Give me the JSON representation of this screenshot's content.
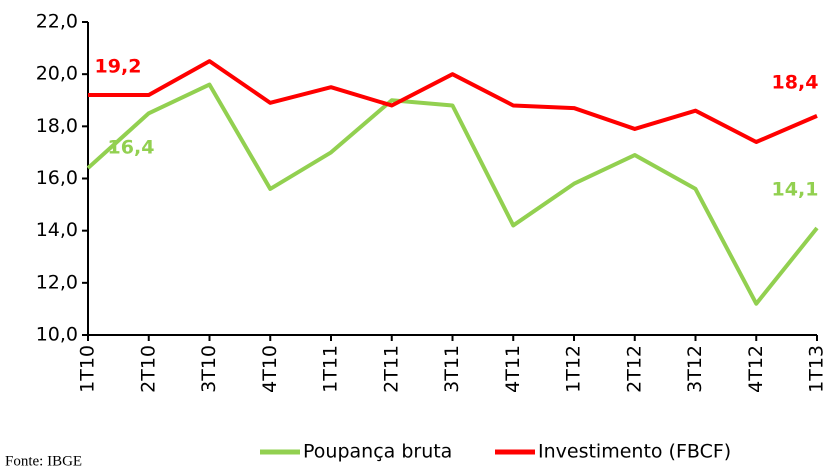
{
  "chart_data": {
    "type": "line",
    "categories": [
      "1T10",
      "2T10",
      "3T10",
      "4T10",
      "1T11",
      "2T11",
      "3T11",
      "4T11",
      "1T12",
      "2T12",
      "3T12",
      "4T12",
      "1T13"
    ],
    "series": [
      {
        "name": "Poupança bruta",
        "color": "#92d050",
        "values": [
          16.4,
          18.5,
          19.6,
          15.6,
          17.0,
          19.0,
          18.8,
          14.2,
          15.8,
          16.9,
          15.6,
          11.2,
          14.1
        ],
        "value_labels": [
          "16,4",
          null,
          null,
          null,
          null,
          null,
          null,
          null,
          null,
          null,
          null,
          null,
          "14,1"
        ]
      },
      {
        "name": "Investimento (FBCF)",
        "color": "#ff0000",
        "values": [
          19.2,
          19.2,
          20.5,
          18.9,
          19.5,
          18.8,
          20.0,
          18.8,
          18.7,
          17.9,
          18.6,
          17.4,
          18.4
        ],
        "value_labels": [
          "19,2",
          null,
          null,
          null,
          null,
          null,
          null,
          null,
          null,
          null,
          null,
          null,
          "18,4"
        ]
      }
    ],
    "ylim": [
      10,
      22
    ],
    "yticks": [
      {
        "value": 10,
        "label": "10,0"
      },
      {
        "value": 12,
        "label": "12,0"
      },
      {
        "value": 14,
        "label": "14,0"
      },
      {
        "value": 16,
        "label": "16,0"
      },
      {
        "value": 18,
        "label": "18,0"
      },
      {
        "value": 20,
        "label": "20,0"
      },
      {
        "value": 22,
        "label": "22,0"
      }
    ],
    "grid": false,
    "source": "Fonte: IBGE"
  }
}
